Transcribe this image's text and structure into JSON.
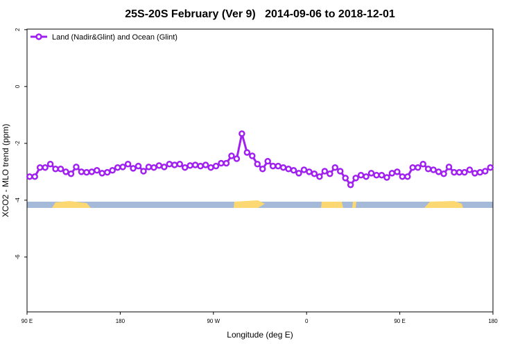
{
  "chart_data": {
    "type": "line",
    "title": "25S-20S February (Ver 9)   2014-09-06 to 2018-12-01",
    "x_label": "Longitude (deg E)",
    "y_label": "XCO2 - MLO trend (ppm)",
    "x": [
      92.5,
      97.5,
      102.5,
      107.5,
      112.5,
      117.5,
      122.5,
      127.5,
      132.5,
      137.5,
      142.5,
      147.5,
      152.5,
      157.5,
      162.5,
      167.5,
      172.5,
      177.5,
      182.5,
      187.5,
      192.5,
      197.5,
      202.5,
      207.5,
      212.5,
      217.5,
      222.5,
      227.5,
      232.5,
      237.5,
      242.5,
      247.5,
      252.5,
      257.5,
      262.5,
      267.5,
      272.5,
      277.5,
      282.5,
      287.5,
      292.5,
      297.5,
      302.5,
      307.5,
      312.5,
      317.5,
      322.5,
      327.5,
      332.5,
      337.5,
      342.5,
      347.5,
      352.5,
      357.5,
      362.5,
      367.5,
      372.5,
      377.5,
      382.5,
      387.5,
      392.5,
      397.5,
      402.5,
      407.5,
      412.5,
      417.5,
      422.5,
      427.5,
      432.5,
      437.5,
      442.5,
      447.5,
      452.5,
      457.5,
      462.5,
      467.5,
      472.5,
      477.5,
      482.5,
      487.5,
      492.5,
      497.5,
      502.5,
      507.5,
      512.5,
      517.5,
      522.5,
      527.5,
      532.5,
      537.5
    ],
    "series": [
      {
        "name": "Land (Nadir&Glint) and Ocean (Glint)",
        "color": "#a020f0",
        "values": [
          -3.17,
          -3.17,
          -2.85,
          -2.85,
          -2.73,
          -2.9,
          -2.9,
          -3.0,
          -3.07,
          -2.83,
          -3.0,
          -3.02,
          -3.0,
          -2.95,
          -3.05,
          -3.02,
          -2.95,
          -2.85,
          -2.83,
          -2.73,
          -2.88,
          -2.8,
          -2.98,
          -2.83,
          -2.85,
          -2.78,
          -2.83,
          -2.73,
          -2.76,
          -2.73,
          -2.85,
          -2.78,
          -2.76,
          -2.8,
          -2.76,
          -2.85,
          -2.8,
          -2.7,
          -2.7,
          -2.44,
          -2.54,
          -1.66,
          -2.32,
          -2.44,
          -2.73,
          -2.9,
          -2.63,
          -2.8,
          -2.8,
          -2.85,
          -2.9,
          -2.95,
          -3.05,
          -2.93,
          -3.0,
          -3.07,
          -3.17,
          -2.98,
          -3.07,
          -2.85,
          -2.98,
          -3.22,
          -3.46,
          -3.22,
          -3.12,
          -3.17,
          -3.05,
          -3.12,
          -3.12,
          -3.2,
          -3.05,
          -3.0,
          -3.17,
          -3.17,
          -2.85,
          -2.85,
          -2.73,
          -2.9,
          -2.93,
          -3.0,
          -3.07,
          -2.83,
          -3.02,
          -3.02,
          -3.02,
          -2.93,
          -3.05,
          -3.02,
          -2.98,
          -2.85
        ]
      }
    ],
    "xlim": [
      90,
      540
    ],
    "xticks": [
      {
        "value": 90,
        "label": "90 E"
      },
      180,
      {
        "value": 270,
        "label": "90 W"
      },
      {
        "value": 360,
        "label": "0"
      },
      {
        "value": 450,
        "label": "90 E"
      },
      {
        "value": 540,
        "label": "180"
      }
    ],
    "ylim": [
      -7.93,
      2.02
    ],
    "yticks": [
      2,
      0,
      -2,
      -4,
      -6
    ],
    "legend": "top-left"
  }
}
